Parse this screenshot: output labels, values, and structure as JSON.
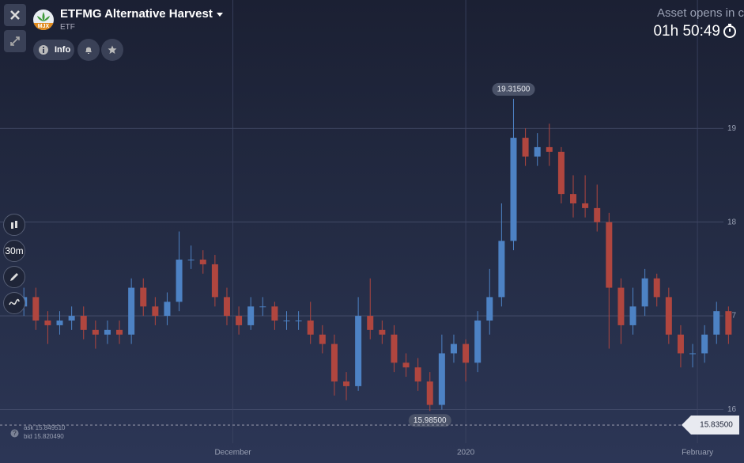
{
  "header": {
    "title": "ETFMG Alternative Harvest",
    "subtitle": "ETF",
    "logo_text": "MJX",
    "info_button": "Info",
    "status": "Asset opens in c",
    "timer": "01h 50:49",
    "interval": "30m"
  },
  "chart_data": {
    "type": "candlestick",
    "up_color": "#4d82c4",
    "down_color": "#b0463f",
    "grid": true,
    "open": [
      17.1,
      17.2,
      16.95,
      16.9,
      16.95,
      17.0,
      16.85,
      16.8,
      16.85,
      16.8,
      17.3,
      17.1,
      17.0,
      17.15,
      17.6,
      17.6,
      17.55,
      17.2,
      17.0,
      16.9,
      17.1,
      17.1,
      16.95,
      16.95,
      16.95,
      16.8,
      16.7,
      16.3,
      16.25,
      17.0,
      16.85,
      16.8,
      16.5,
      16.45,
      16.3,
      16.05,
      16.6,
      16.7,
      16.5,
      16.95,
      17.2,
      17.8,
      18.9,
      18.7,
      18.8,
      18.75,
      18.3,
      18.2,
      18.15,
      18.0,
      17.3,
      16.9,
      17.1,
      17.4,
      17.2,
      16.8,
      16.6,
      16.6,
      16.8,
      17.05
    ],
    "high": [
      17.3,
      17.3,
      17.05,
      17.05,
      17.1,
      17.1,
      16.95,
      16.95,
      16.95,
      17.4,
      17.4,
      17.2,
      17.25,
      17.9,
      17.75,
      17.7,
      17.65,
      17.3,
      17.1,
      17.2,
      17.2,
      17.15,
      17.05,
      17.05,
      17.15,
      16.9,
      16.8,
      16.4,
      17.2,
      17.4,
      16.95,
      16.9,
      16.6,
      16.55,
      16.4,
      16.8,
      16.8,
      16.75,
      17.05,
      17.5,
      18.2,
      19.315,
      19.0,
      18.95,
      19.05,
      18.8,
      18.5,
      18.5,
      18.4,
      18.1,
      17.4,
      17.3,
      17.5,
      17.45,
      17.3,
      16.9,
      16.7,
      16.9,
      17.15,
      17.1
    ],
    "low": [
      17.0,
      16.85,
      16.7,
      16.8,
      16.85,
      16.75,
      16.65,
      16.7,
      16.7,
      16.7,
      17.0,
      16.9,
      16.9,
      17.05,
      17.5,
      17.45,
      17.1,
      16.9,
      16.8,
      16.85,
      17.0,
      16.85,
      16.85,
      16.85,
      16.7,
      16.6,
      16.15,
      16.1,
      16.2,
      16.75,
      16.7,
      16.4,
      16.35,
      16.2,
      15.985,
      16.0,
      16.5,
      16.3,
      16.4,
      16.8,
      17.1,
      17.7,
      18.6,
      18.6,
      18.6,
      18.2,
      18.05,
      18.05,
      17.9,
      16.65,
      16.7,
      16.8,
      17.0,
      17.1,
      16.7,
      16.45,
      16.45,
      16.5,
      16.7,
      16.7
    ],
    "close": [
      17.2,
      16.95,
      16.9,
      16.95,
      17.0,
      16.85,
      16.8,
      16.85,
      16.8,
      17.3,
      17.1,
      17.0,
      17.15,
      17.6,
      17.6,
      17.55,
      17.2,
      17.0,
      16.9,
      17.1,
      17.1,
      16.95,
      16.95,
      16.95,
      16.8,
      16.7,
      16.3,
      16.25,
      17.0,
      16.85,
      16.8,
      16.5,
      16.45,
      16.3,
      16.05,
      16.6,
      16.7,
      16.5,
      16.95,
      17.2,
      17.8,
      18.9,
      18.7,
      18.8,
      18.75,
      18.3,
      18.2,
      18.15,
      18.0,
      17.3,
      16.9,
      17.1,
      17.4,
      17.2,
      16.8,
      16.6,
      16.6,
      16.8,
      17.05,
      16.8
    ],
    "xlim": [
      -2,
      60.3
    ],
    "xticks": [
      {
        "value": 17.5,
        "label": "December"
      },
      {
        "value": 37,
        "label": "2020"
      },
      {
        "value": 56.4,
        "label": "February"
      }
    ],
    "ylim": [
      15.43,
      20.37
    ],
    "yticks": [
      16,
      17,
      18,
      19
    ],
    "max_label": {
      "index": 41,
      "value": 19.315,
      "label": "19.31500"
    },
    "min_label": {
      "index": 34,
      "value": 15.985,
      "label": "15.98500"
    },
    "current_price": {
      "value": 15.835,
      "label": "15.83500"
    },
    "ask": "ask 15.849510",
    "bid": "bid 15.820490"
  }
}
